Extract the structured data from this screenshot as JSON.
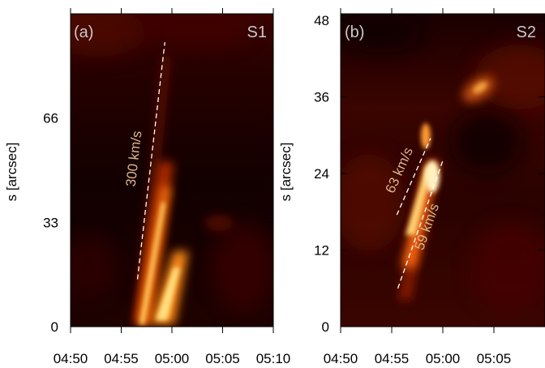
{
  "chart_data": [
    {
      "type": "heatmap",
      "panel_label": "(a)",
      "slit_label": "S1",
      "ylabel": "s [arcsec]",
      "y_ticks": [
        0,
        33,
        66
      ],
      "x_ticks": [
        "04:50",
        "04:55",
        "05:00",
        "05:05",
        "05:10"
      ],
      "xlim": [
        "04:50",
        "05:10"
      ],
      "ylim": [
        0,
        99
      ],
      "colormap": "hot",
      "annotations": [
        {
          "text": "300 km/s",
          "line": {
            "start": [
              "04:56.6",
              15
            ],
            "end": [
              "04:59.3",
              90
            ]
          }
        }
      ]
    },
    {
      "type": "heatmap",
      "panel_label": "(b)",
      "slit_label": "S2",
      "ylabel": "s [arcsec]",
      "y_ticks": [
        0,
        12,
        24,
        36,
        48
      ],
      "x_ticks": [
        "04:50",
        "04:55",
        "05:00",
        "05:05"
      ],
      "xlim": [
        "04:50",
        "05:10"
      ],
      "ylim": [
        0,
        49
      ],
      "colormap": "hot",
      "annotations": [
        {
          "text": "63 km/s",
          "line": {
            "start": [
              "04:55.5",
              17.5
            ],
            "end": [
              "04:58.8",
              29.5
            ]
          }
        },
        {
          "text": "59 km/s",
          "line": {
            "start": [
              "04:55.6",
              6
            ],
            "end": [
              "05:00.0",
              26
            ]
          }
        }
      ]
    }
  ],
  "colors": {
    "background": "#150000",
    "annotation_text": "#d9b48a",
    "annotation_line": "#ffffff",
    "panel_text": "#c9c9c9"
  }
}
